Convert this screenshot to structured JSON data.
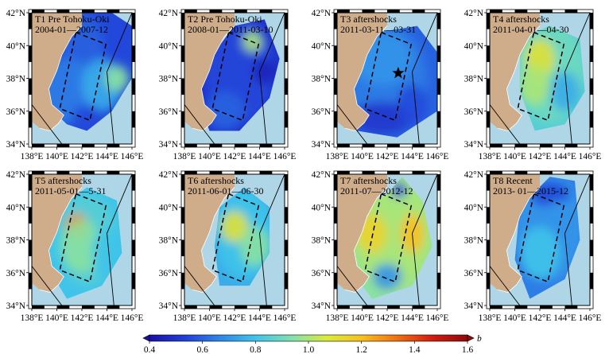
{
  "figure": {
    "panels": [
      {
        "title": "T1 Pre Tohoku-Oki",
        "period": "2004-01—2007-12",
        "star": false
      },
      {
        "title": "T2 Pre Tohoku-Oki",
        "period": "2008-01—2011-03-10",
        "star": false
      },
      {
        "title": "T3 aftershocks",
        "period": "2011-03-11—03-31",
        "star": true
      },
      {
        "title": "T4 aftershocks",
        "period": "2011-04-01—04-30",
        "star": false
      },
      {
        "title": "T5 aftershocks",
        "period": "2011-05-01—5-31",
        "star": false
      },
      {
        "title": "T6 aftershocks",
        "period": "2011-06-01—06-30",
        "star": false
      },
      {
        "title": "T7 aftershocks",
        "period": "2011-07—2012-12",
        "star": false
      },
      {
        "title": "T8 Recent",
        "period": "2013- 01—2015-12",
        "star": false
      }
    ],
    "lat_ticks": [
      "34°N",
      "36°N",
      "38°N",
      "40°N",
      "42°N"
    ],
    "lon_ticks": [
      "138°E",
      "140°E",
      "142°E",
      "144°E",
      "146°E"
    ],
    "lat_range": [
      34,
      42
    ],
    "lon_range": [
      138,
      146
    ],
    "colorbar": {
      "min": 0.4,
      "max": 1.6,
      "ticks": [
        "0.4",
        "0.6",
        "0.8",
        "1.0",
        "1.2",
        "1.4",
        "1.6"
      ],
      "label": "b",
      "colors": [
        "#1a0fa8",
        "#1f3fd8",
        "#2f86e8",
        "#3fc4ea",
        "#7fe0b0",
        "#d8ec3a",
        "#f8c020",
        "#f07010",
        "#d41c10",
        "#900a0a"
      ]
    },
    "colors": {
      "ocean": "#afd6e6",
      "land": "#cfad8a",
      "frame": "#000000"
    }
  }
}
